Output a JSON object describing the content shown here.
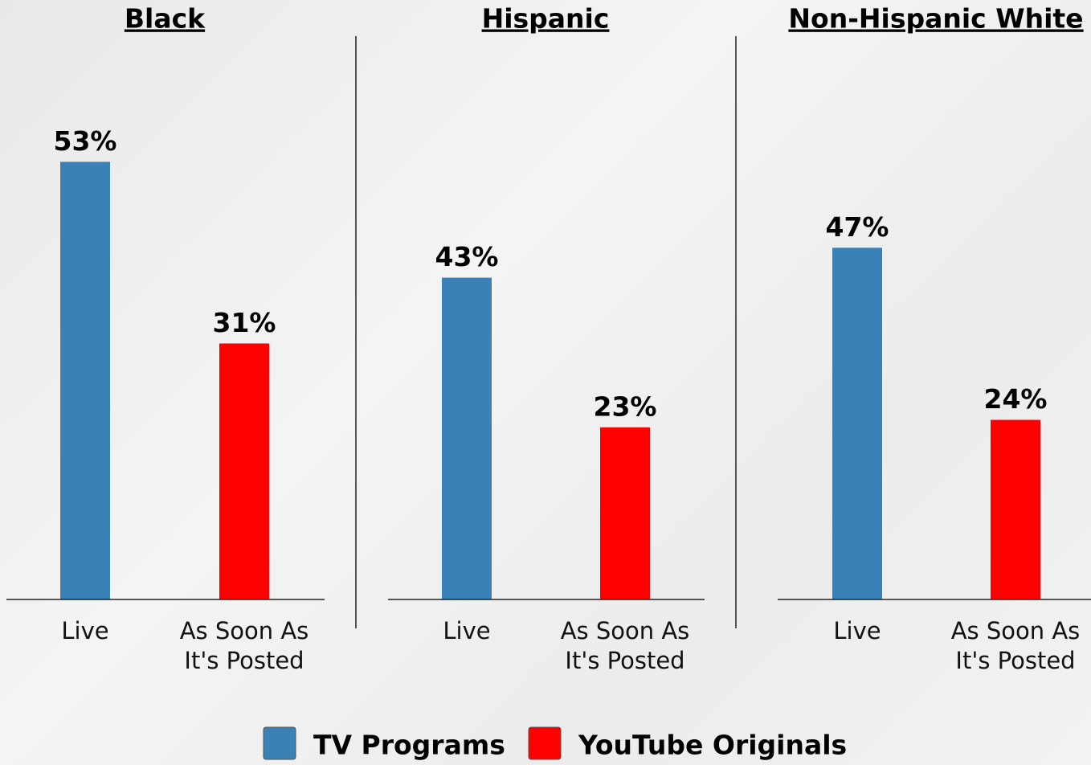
{
  "legend": [
    {
      "name": "TV Programs",
      "color": "#3a82b6"
    },
    {
      "name": "YouTube Originals",
      "color": "#ff0000"
    }
  ],
  "chart_data": [
    {
      "type": "bar",
      "title": "Black",
      "categories": [
        "Live",
        "As Soon As It's Posted"
      ],
      "values": [
        53,
        31
      ],
      "value_labels": [
        "53%",
        "31%"
      ],
      "ylim": [
        0,
        58
      ]
    },
    {
      "type": "bar",
      "title": "Hispanic",
      "categories": [
        "Live",
        "As Soon As It's Posted"
      ],
      "values": [
        43,
        23
      ],
      "value_labels": [
        "43%",
        "23%"
      ],
      "ylim": [
        0,
        64
      ]
    },
    {
      "type": "bar",
      "title": "Non-Hispanic White",
      "categories": [
        "Live",
        "As Soon As It's Posted"
      ],
      "values": [
        47,
        24
      ],
      "value_labels": [
        "47%",
        "24%"
      ],
      "ylim": [
        0,
        64
      ]
    }
  ]
}
